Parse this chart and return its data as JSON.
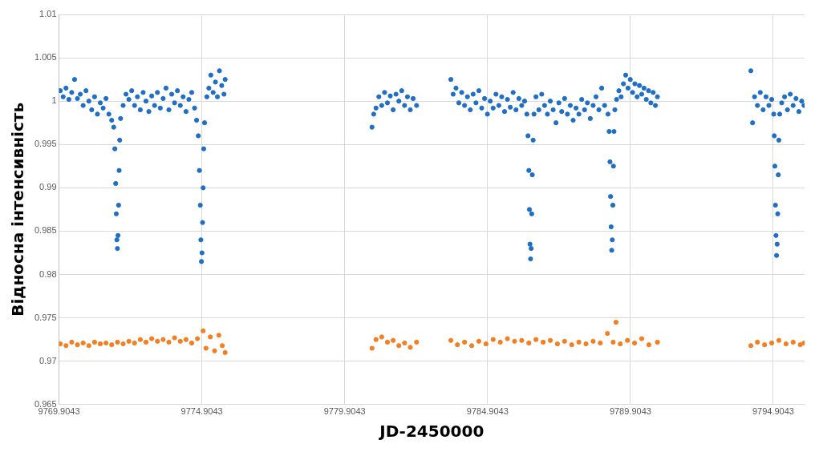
{
  "chart_data": {
    "type": "scatter",
    "xlabel": "JD-2450000",
    "ylabel": "Відносна інтенсивність",
    "xlim": [
      9769.9043,
      9796.0
    ],
    "xticks": [
      9769.9043,
      9774.9043,
      9779.9043,
      9784.9043,
      9789.9043,
      9794.9043
    ],
    "ylim": [
      0.965,
      1.01
    ],
    "yticks": [
      0.965,
      0.97,
      0.975,
      0.98,
      0.985,
      0.99,
      0.995,
      1,
      1.005,
      1.01
    ],
    "grid": true,
    "legend": false,
    "marker": "circle",
    "series": [
      {
        "color": "#1f6fc6",
        "x": [
          9769.95,
          9770.05,
          9770.15,
          9770.25,
          9770.35,
          9770.45,
          9770.55,
          9770.65,
          9770.75,
          9770.85,
          9770.95,
          9771.05,
          9771.15,
          9771.25,
          9771.35,
          9771.45,
          9771.55,
          9771.65,
          9771.75,
          9771.82,
          9771.86,
          9771.89,
          9771.91,
          9771.93,
          9771.95,
          9771.97,
          9771.99,
          9772.01,
          9772.03,
          9772.06,
          9772.15,
          9772.25,
          9772.35,
          9772.45,
          9772.55,
          9772.65,
          9772.75,
          9772.85,
          9772.95,
          9773.05,
          9773.15,
          9773.25,
          9773.35,
          9773.45,
          9773.55,
          9773.65,
          9773.75,
          9773.85,
          9773.95,
          9774.05,
          9774.15,
          9774.25,
          9774.35,
          9774.45,
          9774.55,
          9774.65,
          9774.72,
          9774.78,
          9774.82,
          9774.85,
          9774.87,
          9774.89,
          9774.91,
          9774.93,
          9774.95,
          9774.97,
          9775.0,
          9775.08,
          9775.15,
          9775.22,
          9775.3,
          9775.38,
          9775.45,
          9775.52,
          9775.6,
          9775.68,
          9775.72,
          9780.86,
          9780.92,
          9781.0,
          9781.1,
          9781.2,
          9781.3,
          9781.4,
          9781.5,
          9781.6,
          9781.7,
          9781.8,
          9781.9,
          9782.0,
          9782.1,
          9782.2,
          9782.3,
          9782.42,
          9783.62,
          9783.7,
          9783.8,
          9783.9,
          9784.0,
          9784.1,
          9784.2,
          9784.3,
          9784.4,
          9784.5,
          9784.6,
          9784.7,
          9784.8,
          9784.9,
          9785.0,
          9785.1,
          9785.2,
          9785.3,
          9785.4,
          9785.5,
          9785.6,
          9785.7,
          9785.8,
          9785.9,
          9786.0,
          9786.1,
          9786.2,
          9786.28,
          9786.32,
          9786.35,
          9786.37,
          9786.39,
          9786.41,
          9786.43,
          9786.45,
          9786.47,
          9786.5,
          9786.53,
          9786.6,
          9786.7,
          9786.8,
          9786.9,
          9787.0,
          9787.1,
          9787.2,
          9787.3,
          9787.4,
          9787.5,
          9787.6,
          9787.7,
          9787.8,
          9787.9,
          9788.0,
          9788.1,
          9788.2,
          9788.3,
          9788.4,
          9788.5,
          9788.6,
          9788.7,
          9788.8,
          9788.9,
          9789.0,
          9789.12,
          9789.16,
          9789.19,
          9789.21,
          9789.23,
          9789.25,
          9789.27,
          9789.29,
          9789.31,
          9789.33,
          9789.36,
          9789.42,
          9789.5,
          9789.58,
          9789.66,
          9789.74,
          9789.82,
          9789.9,
          9789.98,
          9790.06,
          9790.14,
          9790.22,
          9790.3,
          9790.38,
          9790.46,
          9790.54,
          9790.62,
          9790.7,
          9790.78,
          9790.85,
          9794.12,
          9794.18,
          9794.25,
          9794.35,
          9794.45,
          9794.55,
          9794.65,
          9794.75,
          9794.85,
          9794.92,
          9794.94,
          9794.96,
          9794.98,
          9795.0,
          9795.02,
          9795.04,
          9795.06,
          9795.08,
          9795.1,
          9795.13,
          9795.2,
          9795.3,
          9795.4,
          9795.5,
          9795.6,
          9795.7,
          9795.8,
          9795.9,
          9795.98
        ],
        "values": [
          1.0012,
          1.0005,
          1.0015,
          1.0002,
          1.001,
          1.0025,
          1.0003,
          1.0008,
          0.9995,
          1.0012,
          1.0,
          0.999,
          1.0005,
          0.9985,
          0.9998,
          0.9992,
          1.0003,
          0.9985,
          0.9978,
          0.997,
          0.9945,
          0.9905,
          0.987,
          0.984,
          0.983,
          0.9845,
          0.988,
          0.992,
          0.9955,
          0.998,
          0.9995,
          1.0008,
          1.0002,
          1.0012,
          0.9995,
          1.0005,
          0.999,
          1.001,
          1.0,
          0.9988,
          1.0006,
          0.9995,
          1.001,
          0.9992,
          1.0003,
          1.0015,
          0.999,
          1.0008,
          0.9998,
          1.0012,
          0.9995,
          1.0005,
          0.9988,
          1.0002,
          1.001,
          0.9992,
          0.9978,
          0.996,
          0.992,
          0.988,
          0.984,
          0.9815,
          0.9825,
          0.986,
          0.99,
          0.9945,
          0.9975,
          1.0005,
          1.0015,
          1.003,
          1.001,
          1.0022,
          1.0005,
          1.0035,
          1.0018,
          1.0008,
          1.0025,
          0.997,
          0.9985,
          0.9992,
          1.0005,
          0.9995,
          1.001,
          0.9998,
          1.0006,
          0.999,
          1.0008,
          1.0,
          1.0012,
          0.9995,
          1.0005,
          0.999,
          1.0003,
          0.9995,
          1.0025,
          1.0008,
          1.0015,
          0.9998,
          1.001,
          0.9995,
          1.0005,
          0.999,
          1.0008,
          0.9998,
          1.0012,
          0.9992,
          1.0003,
          0.9985,
          1.0,
          0.9992,
          1.0008,
          0.9995,
          1.0005,
          0.9988,
          1.0002,
          0.9993,
          1.001,
          0.999,
          1.0003,
          0.9995,
          1.0,
          0.9985,
          0.996,
          0.992,
          0.9875,
          0.9835,
          0.9818,
          0.983,
          0.987,
          0.9915,
          0.9955,
          0.9985,
          1.0005,
          0.999,
          1.0008,
          0.9995,
          0.9985,
          1.0,
          0.999,
          0.9975,
          0.9998,
          0.9988,
          1.0003,
          0.9985,
          0.9995,
          0.9978,
          0.9992,
          0.9985,
          1.0002,
          0.999,
          0.9998,
          0.998,
          0.9995,
          1.0005,
          0.999,
          1.0015,
          0.9995,
          0.9985,
          0.9965,
          0.993,
          0.989,
          0.9855,
          0.9828,
          0.984,
          0.988,
          0.9925,
          0.9965,
          0.999,
          1.0002,
          1.0012,
          1.0005,
          1.002,
          1.003,
          1.0015,
          1.0025,
          1.001,
          1.002,
          1.0005,
          1.0018,
          1.0008,
          1.0015,
          1.0002,
          1.0012,
          0.9998,
          1.001,
          0.9995,
          1.0005,
          1.0035,
          0.9975,
          1.0005,
          0.9995,
          1.001,
          0.999,
          1.0005,
          0.9995,
          1.0002,
          0.9985,
          0.996,
          0.9925,
          0.988,
          0.9845,
          0.9822,
          0.9835,
          0.987,
          0.9915,
          0.9955,
          0.9985,
          0.9998,
          1.0005,
          0.999,
          1.0008,
          0.9995,
          1.0003,
          0.9988,
          1.0,
          0.9995
        ]
      },
      {
        "color": "#f47e20",
        "x": [
          9769.95,
          9770.15,
          9770.35,
          9770.55,
          9770.75,
          9770.95,
          9771.15,
          9771.35,
          9771.55,
          9771.75,
          9771.95,
          9772.15,
          9772.35,
          9772.55,
          9772.75,
          9772.95,
          9773.15,
          9773.35,
          9773.55,
          9773.75,
          9773.95,
          9774.15,
          9774.35,
          9774.55,
          9774.75,
          9774.95,
          9775.05,
          9775.2,
          9775.35,
          9775.5,
          9775.62,
          9775.72,
          9780.86,
          9781.0,
          9781.2,
          9781.4,
          9781.6,
          9781.8,
          9782.0,
          9782.2,
          9782.42,
          9783.62,
          9783.85,
          9784.1,
          9784.35,
          9784.6,
          9784.85,
          9785.1,
          9785.35,
          9785.6,
          9785.85,
          9786.1,
          9786.35,
          9786.6,
          9786.85,
          9787.1,
          9787.35,
          9787.6,
          9787.85,
          9788.1,
          9788.35,
          9788.6,
          9788.85,
          9789.1,
          9789.3,
          9789.4,
          9789.55,
          9789.8,
          9790.05,
          9790.3,
          9790.55,
          9790.85,
          9794.12,
          9794.35,
          9794.6,
          9794.85,
          9795.1,
          9795.35,
          9795.6,
          9795.85,
          9795.98
        ],
        "values": [
          0.972,
          0.9718,
          0.9722,
          0.9719,
          0.9721,
          0.9718,
          0.9722,
          0.972,
          0.9721,
          0.9719,
          0.9722,
          0.972,
          0.9723,
          0.9721,
          0.9725,
          0.9722,
          0.9726,
          0.9723,
          0.9725,
          0.9722,
          0.9727,
          0.9723,
          0.9725,
          0.9721,
          0.9726,
          0.9735,
          0.9715,
          0.9728,
          0.9712,
          0.973,
          0.9718,
          0.971,
          0.9715,
          0.9725,
          0.9728,
          0.9722,
          0.9724,
          0.9718,
          0.9721,
          0.9716,
          0.9722,
          0.9724,
          0.9719,
          0.9722,
          0.9718,
          0.9723,
          0.972,
          0.9725,
          0.9722,
          0.9726,
          0.9723,
          0.9724,
          0.9721,
          0.9725,
          0.9722,
          0.9724,
          0.972,
          0.9723,
          0.9719,
          0.9722,
          0.972,
          0.9723,
          0.9721,
          0.9732,
          0.9722,
          0.9745,
          0.972,
          0.9724,
          0.9721,
          0.9726,
          0.9719,
          0.9722,
          0.9718,
          0.9722,
          0.9719,
          0.9721,
          0.9724,
          0.972,
          0.9722,
          0.9719,
          0.9721
        ]
      }
    ]
  }
}
